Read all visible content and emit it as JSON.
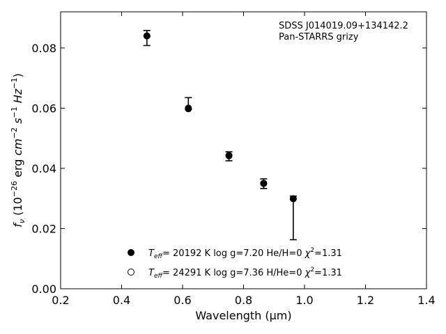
{
  "chart_data": {
    "type": "scatter",
    "xlabel": "Wavelength (μm)",
    "ylabel": "f_ν (10^−26 erg cm^−2 s^−1 Hz^−1)",
    "xlim": [
      0.2,
      1.4
    ],
    "ylim": [
      0.0,
      0.092
    ],
    "x_ticks": [
      0.2,
      0.4,
      0.6,
      0.8,
      1.0,
      1.2,
      1.4
    ],
    "x_tick_labels": [
      "0.2",
      "0.4",
      "0.6",
      "0.8",
      "1.0",
      "1.2",
      "1.4"
    ],
    "y_ticks": [
      0.0,
      0.02,
      0.04,
      0.06,
      0.08
    ],
    "y_tick_labels": [
      "0.00",
      "0.02",
      "0.04",
      "0.06",
      "0.08"
    ],
    "grid": false,
    "annotation": [
      "SDSS J014019.09+134142.2",
      "Pan-STARRS grizy"
    ],
    "observed": {
      "x": [
        0.483,
        0.619,
        0.752,
        0.866,
        0.963
      ],
      "y_low": [
        0.0808,
        0.0595,
        0.0425,
        0.0333,
        0.0163
      ],
      "y_high": [
        0.0858,
        0.0635,
        0.0455,
        0.0365,
        0.0308
      ]
    },
    "series": [
      {
        "marker": "filled",
        "label": {
          "teff_value": "= 20192 K",
          "logg": "log g=7.20",
          "hhe": "He/H=0",
          "chi2": "=1.31"
        },
        "x": [
          0.483,
          0.619,
          0.752,
          0.866,
          0.963
        ],
        "y": [
          0.084,
          0.06,
          0.0443,
          0.035,
          0.0299
        ]
      },
      {
        "marker": "open",
        "label": {
          "teff_value": "= 24291 K",
          "logg": "log g=7.36",
          "hhe": "H/He=0",
          "chi2": "=1.31"
        },
        "x": [
          0.483,
          0.619,
          0.752,
          0.866,
          0.963
        ],
        "y": [
          0.084,
          0.0598,
          0.0442,
          0.035,
          0.0299
        ]
      }
    ],
    "legend_position": "bottom-center"
  }
}
